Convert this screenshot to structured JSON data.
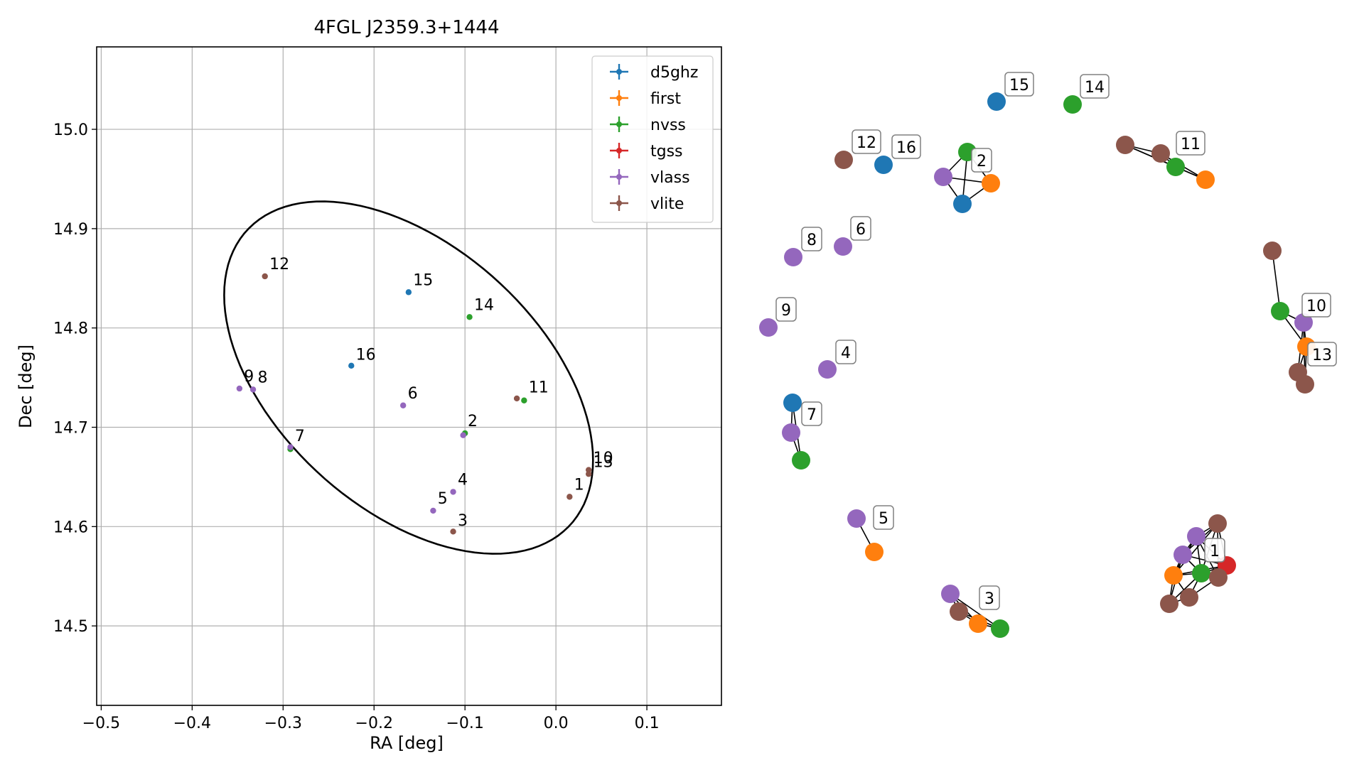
{
  "chart_data": [
    {
      "type": "scatter",
      "title": "4FGL J2359.3+1444",
      "xlabel": "RA [deg]",
      "ylabel": "Dec [deg]",
      "xlim": [
        -0.505,
        0.182
      ],
      "ylim": [
        14.42,
        15.083
      ],
      "xticks": [
        -0.5,
        -0.4,
        -0.3,
        -0.2,
        -0.1,
        0.0,
        0.1
      ],
      "xtick_labels": [
        "−0.5",
        "−0.4",
        "−0.3",
        "−0.2",
        "−0.1",
        "0.0",
        "0.1"
      ],
      "yticks": [
        14.5,
        14.6,
        14.7,
        14.8,
        14.9,
        15.0
      ],
      "ytick_labels": [
        "14.5",
        "14.6",
        "14.7",
        "14.8",
        "14.9",
        "15.0"
      ],
      "grid": true,
      "legend_position": "top-right",
      "ellipse": {
        "center": [
          -0.162,
          14.75
        ],
        "semi_axis_a": 0.232,
        "semi_axis_b": 0.137,
        "angle_deg": -37
      },
      "series": [
        {
          "name": "d5ghz",
          "color": "#1f77b4",
          "points": [
            [
              -0.162,
              14.836
            ],
            [
              -0.225,
              14.762
            ]
          ]
        },
        {
          "name": "first",
          "color": "#ff7f0e",
          "points": []
        },
        {
          "name": "nvss",
          "color": "#2ca02c",
          "points": [
            [
              -0.095,
              14.811
            ],
            [
              -0.035,
              14.727
            ],
            [
              -0.292,
              14.678
            ],
            [
              -0.1,
              14.694
            ]
          ]
        },
        {
          "name": "tgss",
          "color": "#d62728",
          "points": []
        },
        {
          "name": "vlass",
          "color": "#9467bd",
          "points": [
            [
              -0.168,
              14.722
            ],
            [
              -0.102,
              14.692
            ],
            [
              -0.113,
              14.635
            ],
            [
              -0.135,
              14.616
            ],
            [
              -0.348,
              14.739
            ],
            [
              -0.333,
              14.738
            ],
            [
              -0.292,
              14.68
            ]
          ]
        },
        {
          "name": "vlite",
          "color": "#8c564b",
          "points": [
            [
              -0.32,
              14.852
            ],
            [
              -0.043,
              14.729
            ],
            [
              0.015,
              14.63
            ],
            [
              -0.113,
              14.595
            ],
            [
              0.036,
              14.657
            ],
            [
              0.036,
              14.653
            ]
          ]
        }
      ],
      "annotations": [
        {
          "text": "1",
          "x": 0.02,
          "y": 14.637
        },
        {
          "text": "2",
          "x": -0.097,
          "y": 14.701
        },
        {
          "text": "3",
          "x": -0.108,
          "y": 14.601
        },
        {
          "text": "4",
          "x": -0.108,
          "y": 14.642
        },
        {
          "text": "5",
          "x": -0.13,
          "y": 14.623
        },
        {
          "text": "6",
          "x": -0.163,
          "y": 14.729
        },
        {
          "text": "7",
          "x": -0.287,
          "y": 14.686
        },
        {
          "text": "8",
          "x": -0.328,
          "y": 14.745
        },
        {
          "text": "9",
          "x": -0.343,
          "y": 14.746
        },
        {
          "text": "10",
          "x": 0.041,
          "y": 14.664
        },
        {
          "text": "11",
          "x": -0.03,
          "y": 14.735
        },
        {
          "text": "12",
          "x": -0.315,
          "y": 14.859
        },
        {
          "text": "13",
          "x": 0.041,
          "y": 14.66
        },
        {
          "text": "14",
          "x": -0.09,
          "y": 14.818
        },
        {
          "text": "15",
          "x": -0.157,
          "y": 14.843
        },
        {
          "text": "16",
          "x": -0.22,
          "y": 14.768
        }
      ]
    },
    {
      "type": "network",
      "colors": {
        "d5ghz": "#1f77b4",
        "first": "#ff7f0e",
        "nvss": "#2ca02c",
        "tgss": "#d62728",
        "vlass": "#9467bd",
        "vlite": "#8c564b"
      },
      "nodes": [
        {
          "id": "n15",
          "color": "#1f77b4",
          "label": "15"
        },
        {
          "id": "n14",
          "color": "#2ca02c",
          "label": "14"
        },
        {
          "id": "n12",
          "color": "#8c564b",
          "label": "12"
        },
        {
          "id": "n16",
          "color": "#1f77b4",
          "label": "16"
        },
        {
          "id": "n2g",
          "color": "#2ca02c",
          "label": "2"
        },
        {
          "id": "n2v",
          "color": "#9467bd",
          "label": ""
        },
        {
          "id": "n2f",
          "color": "#ff7f0e",
          "label": ""
        },
        {
          "id": "n2d",
          "color": "#1f77b4",
          "label": ""
        },
        {
          "id": "n11a",
          "color": "#8c564b",
          "label": ""
        },
        {
          "id": "n11b",
          "color": "#8c564b",
          "label": ""
        },
        {
          "id": "n11g",
          "color": "#2ca02c",
          "label": "11"
        },
        {
          "id": "n11f",
          "color": "#ff7f0e",
          "label": ""
        },
        {
          "id": "n8",
          "color": "#9467bd",
          "label": "8"
        },
        {
          "id": "n6",
          "color": "#9467bd",
          "label": "6"
        },
        {
          "id": "n9",
          "color": "#9467bd",
          "label": "9"
        },
        {
          "id": "n4",
          "color": "#9467bd",
          "label": "4"
        },
        {
          "id": "n7d",
          "color": "#1f77b4",
          "label": ""
        },
        {
          "id": "n7v",
          "color": "#9467bd",
          "label": "7"
        },
        {
          "id": "n7g",
          "color": "#2ca02c",
          "label": ""
        },
        {
          "id": "n10a",
          "color": "#8c564b",
          "label": ""
        },
        {
          "id": "n10g",
          "color": "#2ca02c",
          "label": ""
        },
        {
          "id": "n10v",
          "color": "#9467bd",
          "label": "10"
        },
        {
          "id": "n13f",
          "color": "#ff7f0e",
          "label": "13"
        },
        {
          "id": "n13b",
          "color": "#8c564b",
          "label": ""
        },
        {
          "id": "n13c",
          "color": "#8c564b",
          "label": ""
        },
        {
          "id": "n5v",
          "color": "#9467bd",
          "label": "5"
        },
        {
          "id": "n5f",
          "color": "#ff7f0e",
          "label": ""
        },
        {
          "id": "n3v",
          "color": "#9467bd",
          "label": ""
        },
        {
          "id": "n3b",
          "color": "#8c564b",
          "label": ""
        },
        {
          "id": "n3f",
          "color": "#ff7f0e",
          "label": "3"
        },
        {
          "id": "n3g",
          "color": "#2ca02c",
          "label": ""
        },
        {
          "id": "n1a",
          "color": "#8c564b",
          "label": ""
        },
        {
          "id": "n1v1",
          "color": "#9467bd",
          "label": ""
        },
        {
          "id": "n1v2",
          "color": "#9467bd",
          "label": ""
        },
        {
          "id": "n1f",
          "color": "#ff7f0e",
          "label": ""
        },
        {
          "id": "n1g",
          "color": "#2ca02c",
          "label": "1"
        },
        {
          "id": "n1t",
          "color": "#d62728",
          "label": ""
        },
        {
          "id": "n1b",
          "color": "#8c564b",
          "label": ""
        },
        {
          "id": "n1c",
          "color": "#8c564b",
          "label": ""
        },
        {
          "id": "n1d",
          "color": "#8c564b",
          "label": ""
        }
      ],
      "edges": [
        [
          "n2g",
          "n2v"
        ],
        [
          "n2g",
          "n2f"
        ],
        [
          "n2g",
          "n2d"
        ],
        [
          "n2v",
          "n2f"
        ],
        [
          "n2v",
          "n2d"
        ],
        [
          "n2f",
          "n2d"
        ],
        [
          "n11a",
          "n11g"
        ],
        [
          "n11b",
          "n11g"
        ],
        [
          "n11a",
          "n11f"
        ],
        [
          "n11b",
          "n11f"
        ],
        [
          "n11g",
          "n11f"
        ],
        [
          "n11a",
          "n11b"
        ],
        [
          "n7d",
          "n7v"
        ],
        [
          "n7v",
          "n7g"
        ],
        [
          "n7d",
          "n7g"
        ],
        [
          "n10a",
          "n10g"
        ],
        [
          "n10g",
          "n10v"
        ],
        [
          "n10g",
          "n13f"
        ],
        [
          "n10v",
          "n13f"
        ],
        [
          "n10v",
          "n13b"
        ],
        [
          "n13f",
          "n13b"
        ],
        [
          "n13f",
          "n13c"
        ],
        [
          "n10v",
          "n13c"
        ],
        [
          "n13b",
          "n13c"
        ],
        [
          "n5v",
          "n5f"
        ],
        [
          "n3v",
          "n3f"
        ],
        [
          "n3b",
          "n3f"
        ],
        [
          "n3f",
          "n3g"
        ],
        [
          "n3v",
          "n3g"
        ],
        [
          "n3b",
          "n3g"
        ],
        [
          "n3v",
          "n3b"
        ],
        [
          "n1a",
          "n1v1"
        ],
        [
          "n1a",
          "n1g"
        ],
        [
          "n1a",
          "n1t"
        ],
        [
          "n1a",
          "n1b"
        ],
        [
          "n1a",
          "n1f"
        ],
        [
          "n1a",
          "n1v2"
        ],
        [
          "n1v1",
          "n1g"
        ],
        [
          "n1v1",
          "n1t"
        ],
        [
          "n1v1",
          "n1f"
        ],
        [
          "n1v1",
          "n1b"
        ],
        [
          "n1v1",
          "n1v2"
        ],
        [
          "n1v2",
          "n1g"
        ],
        [
          "n1v2",
          "n1f"
        ],
        [
          "n1v2",
          "n1t"
        ],
        [
          "n1v2",
          "n1d"
        ],
        [
          "n1f",
          "n1g"
        ],
        [
          "n1f",
          "n1t"
        ],
        [
          "n1f",
          "n1d"
        ],
        [
          "n1f",
          "n1c"
        ],
        [
          "n1g",
          "n1t"
        ],
        [
          "n1g",
          "n1b"
        ],
        [
          "n1g",
          "n1c"
        ],
        [
          "n1g",
          "n1d"
        ],
        [
          "n1t",
          "n1b"
        ],
        [
          "n1c",
          "n1d"
        ],
        [
          "n1c",
          "n1b"
        ]
      ]
    }
  ]
}
